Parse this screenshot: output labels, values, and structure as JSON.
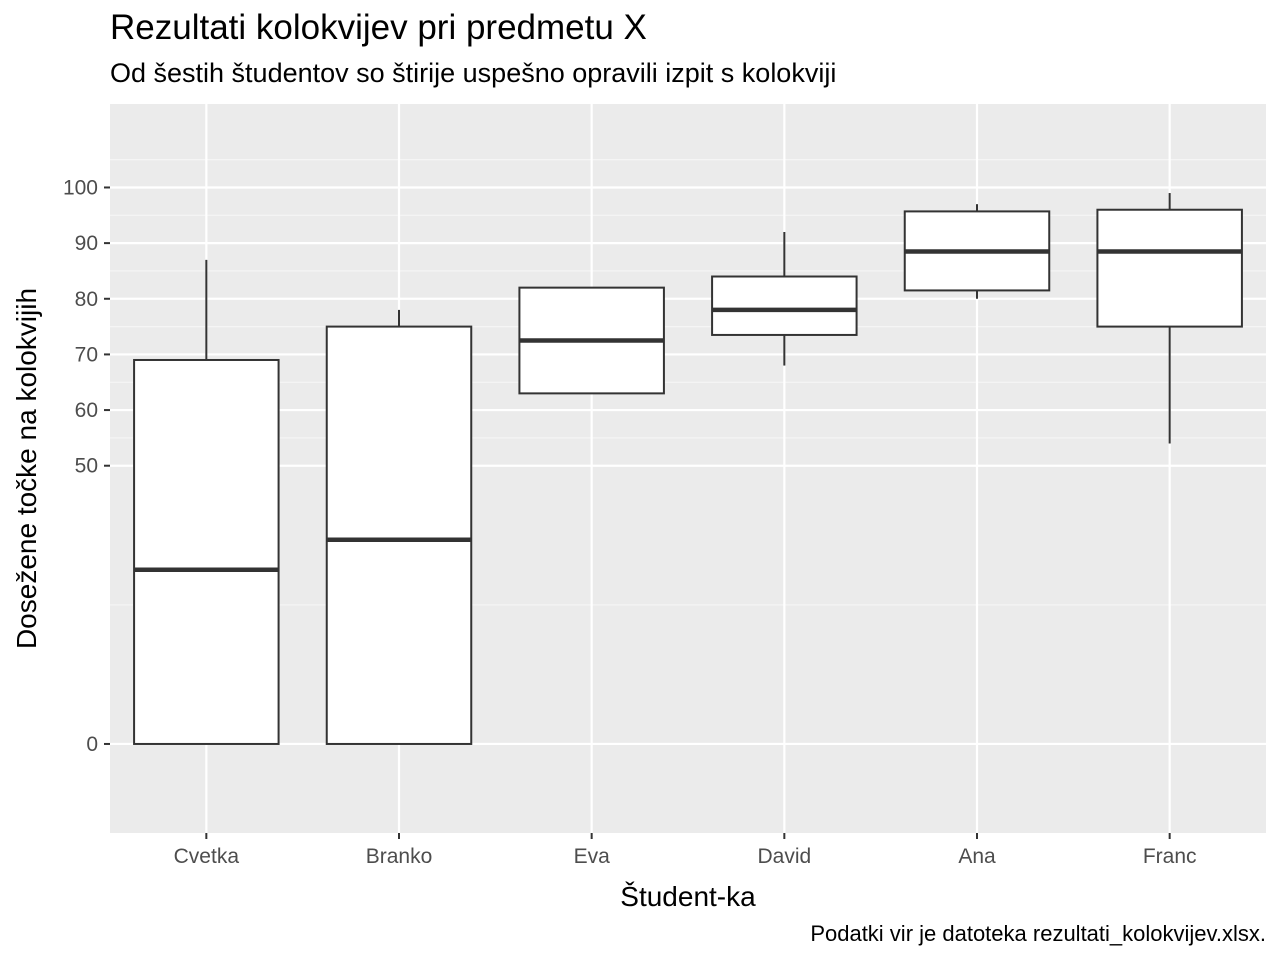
{
  "chart_data": {
    "type": "boxplot",
    "title": "Rezultati kolokvijev pri predmetu X",
    "subtitle": "Od šestih študentov so štirije uspešno opravili izpit s kolokviji",
    "caption": "Podatki vir je datoteka rezultati_kolokvijev.xlsx.",
    "xlabel": "Študent-ka",
    "ylabel": "Dosežene točke na kolokvijih",
    "ylim": [
      -16,
      115
    ],
    "y_ticks": [
      0,
      50,
      60,
      70,
      80,
      90,
      100
    ],
    "y_minor_ticks": [
      25,
      55,
      65,
      75,
      85,
      95,
      105
    ],
    "grid": true,
    "categories": [
      "Cvetka",
      "Branko",
      "Eva",
      "David",
      "Ana",
      "Franc"
    ],
    "boxes": [
      {
        "category": "Cvetka",
        "whisker_low": 0,
        "q1": 0,
        "median": 31.3,
        "q3": 69,
        "whisker_high": 87
      },
      {
        "category": "Branko",
        "whisker_low": 0,
        "q1": 0,
        "median": 36.7,
        "q3": 75,
        "whisker_high": 78
      },
      {
        "category": "Eva",
        "whisker_low": 63,
        "q1": 63,
        "median": 72.5,
        "q3": 82,
        "whisker_high": 82
      },
      {
        "category": "David",
        "whisker_low": 68,
        "q1": 73.5,
        "median": 78,
        "q3": 84,
        "whisker_high": 92
      },
      {
        "category": "Ana",
        "whisker_low": 80,
        "q1": 81.5,
        "median": 88.5,
        "q3": 95.7,
        "whisker_high": 97
      },
      {
        "category": "Franc",
        "whisker_low": 54,
        "q1": 75,
        "median": 88.5,
        "q3": 96,
        "whisker_high": 99
      }
    ],
    "colors": {
      "panel": "#ebebeb",
      "grid_major": "#ffffff",
      "grid_minor": "#f5f5f5",
      "box_fill": "#ffffff",
      "box_stroke": "#333333",
      "tick_text": "#4d4d4d"
    }
  }
}
